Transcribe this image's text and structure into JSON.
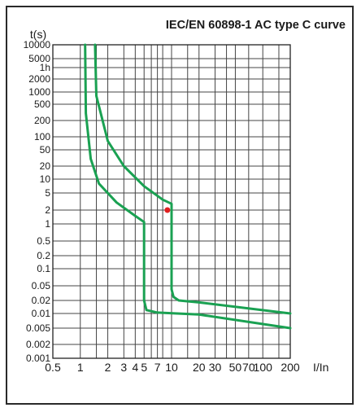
{
  "chart_data": {
    "type": "line",
    "title": "IEC/EN 60898-1 AC type C curve",
    "ylabel": "t(s)",
    "xlabel": "I/In",
    "y_scale": "log",
    "x_scale": "log",
    "ylim": [
      0.001,
      10000
    ],
    "grid": true,
    "y_ticks": [
      {
        "label": "10000",
        "value": 10000
      },
      {
        "label": "5000",
        "value": 5000
      },
      {
        "label": "1h",
        "value": 3600
      },
      {
        "label": "2000",
        "value": 2000
      },
      {
        "label": "1000",
        "value": 1000
      },
      {
        "label": "500",
        "value": 500
      },
      {
        "label": "200",
        "value": 200
      },
      {
        "label": "100",
        "value": 100
      },
      {
        "label": "50",
        "value": 50
      },
      {
        "label": "20",
        "value": 20
      },
      {
        "label": "10",
        "value": 10
      },
      {
        "label": "5",
        "value": 5
      },
      {
        "label": "2",
        "value": 2
      },
      {
        "label": "1",
        "value": 1
      },
      {
        "label": "0.5",
        "value": 0.5
      },
      {
        "label": "0.2",
        "value": 0.2
      },
      {
        "label": "0.1",
        "value": 0.1
      },
      {
        "label": "0.05",
        "value": 0.05
      },
      {
        "label": "0.02",
        "value": 0.02
      },
      {
        "label": "0.01",
        "value": 0.01
      },
      {
        "label": "0.005",
        "value": 0.005
      },
      {
        "label": "0.002",
        "value": 0.002
      },
      {
        "label": "0.001",
        "value": 0.001
      }
    ],
    "x_gridlines": [
      1,
      1.5,
      2,
      3,
      4,
      5,
      6,
      7,
      8,
      10,
      15,
      20,
      30,
      40,
      50,
      70,
      100,
      150
    ],
    "x_ticks": [
      {
        "label": "0.5",
        "value": 0.5
      },
      {
        "label": "1",
        "value": 1
      },
      {
        "label": "2",
        "value": 2
      },
      {
        "label": "3",
        "value": 3
      },
      {
        "label": "4",
        "value": 4
      },
      {
        "label": "5",
        "value": 5
      },
      {
        "label": "7",
        "value": 7
      },
      {
        "label": "10",
        "value": 10
      },
      {
        "label": "20",
        "value": 20
      },
      {
        "label": "30",
        "value": 30
      },
      {
        "label": "50",
        "value": 50
      },
      {
        "label": "70",
        "value": 70
      },
      {
        "label": "100",
        "value": 100
      },
      {
        "label": "200",
        "value": 200
      }
    ],
    "series": [
      {
        "color": "#1aa152",
        "points": [
          [
            1.13,
            10000
          ],
          [
            1.15,
            300
          ],
          [
            1.3,
            30
          ],
          [
            1.6,
            8
          ],
          [
            2.5,
            3
          ],
          [
            4,
            1.5
          ],
          [
            5,
            1.1
          ],
          [
            5,
            0.02
          ],
          [
            5.3,
            0.012
          ],
          [
            7,
            0.0105
          ],
          [
            20,
            0.0095
          ],
          [
            200,
            0.005
          ]
        ]
      },
      {
        "color": "#1aa152",
        "points": [
          [
            1.45,
            10000
          ],
          [
            1.5,
            800
          ],
          [
            2,
            80
          ],
          [
            3,
            20
          ],
          [
            5,
            7
          ],
          [
            8,
            3.5
          ],
          [
            10,
            2.8
          ],
          [
            10,
            0.04
          ],
          [
            10.5,
            0.025
          ],
          [
            12,
            0.02
          ],
          [
            20,
            0.018
          ],
          [
            200,
            0.01
          ]
        ]
      }
    ],
    "marker": {
      "x": 9,
      "y": 2,
      "color": "#e02020"
    }
  }
}
